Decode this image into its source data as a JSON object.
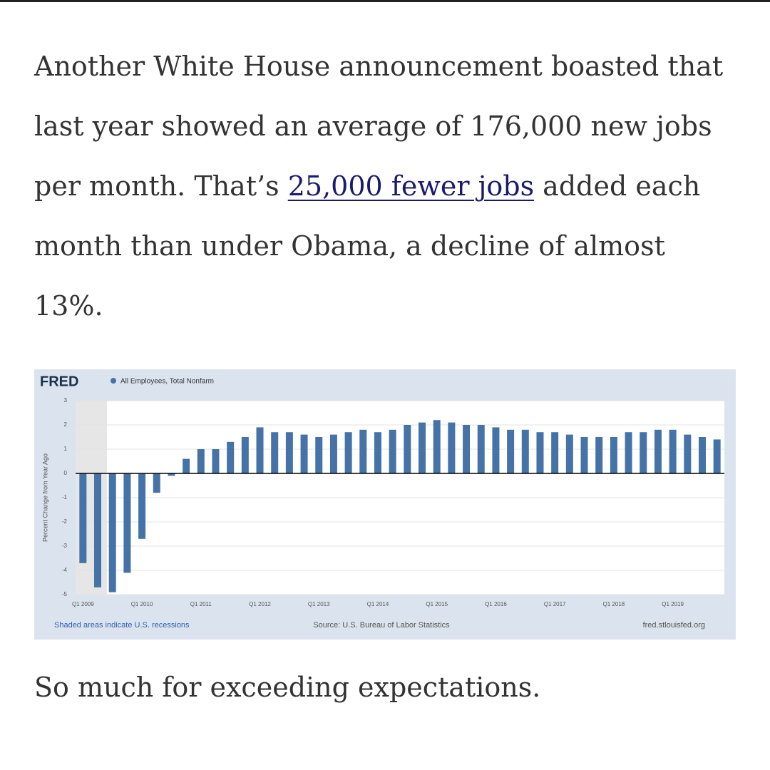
{
  "article": {
    "paragraph1": {
      "before": "Another White House announcement boasted that last year showed an average of 176,000 new jobs per month. That’s ",
      "link": "25,000 fewer jobs",
      "after": " added each month than under Obama, a decline of almost 13%."
    },
    "paragraph2": "So much for exceeding expectations."
  },
  "chart_data": {
    "type": "bar",
    "logo": "FRED",
    "y_label": "Percent Change from Year Ago",
    "series": [
      {
        "name": "All Employees, Total Nonfarm",
        "color": "#4572a7",
        "values": [
          -3.7,
          -4.7,
          -4.9,
          -4.1,
          -2.7,
          -0.8,
          -0.1,
          0.6,
          1.0,
          1.0,
          1.3,
          1.5,
          1.9,
          1.7,
          1.7,
          1.6,
          1.5,
          1.6,
          1.7,
          1.8,
          1.7,
          1.8,
          2.0,
          2.1,
          2.2,
          2.1,
          2.0,
          2.0,
          1.9,
          1.8,
          1.8,
          1.7,
          1.7,
          1.6,
          1.5,
          1.5,
          1.5,
          1.7,
          1.7,
          1.8,
          1.8,
          1.6,
          1.5,
          1.4
        ]
      }
    ],
    "categories": [
      "Q1 2009",
      null,
      null,
      null,
      "Q1 2010",
      null,
      null,
      null,
      "Q1 2011",
      null,
      null,
      null,
      "Q1 2012",
      null,
      null,
      null,
      "Q1 2013",
      null,
      null,
      null,
      "Q1 2014",
      null,
      null,
      null,
      "Q1 2015",
      null,
      null,
      null,
      "Q1 2016",
      null,
      null,
      null,
      "Q1 2017",
      null,
      null,
      null,
      "Q1 2018",
      null,
      null,
      null,
      "Q1 2019",
      null,
      null,
      null
    ],
    "ylim": [
      -5,
      3
    ],
    "yticks": [
      -5,
      -4,
      -3,
      -2,
      -1,
      0,
      1,
      2,
      3
    ],
    "grid": true,
    "note": "Shaded areas indicate U.S. recessions",
    "source": "Source: U.S. Bureau of Labor Statistics",
    "site": "fred.stlouisfed.org"
  }
}
